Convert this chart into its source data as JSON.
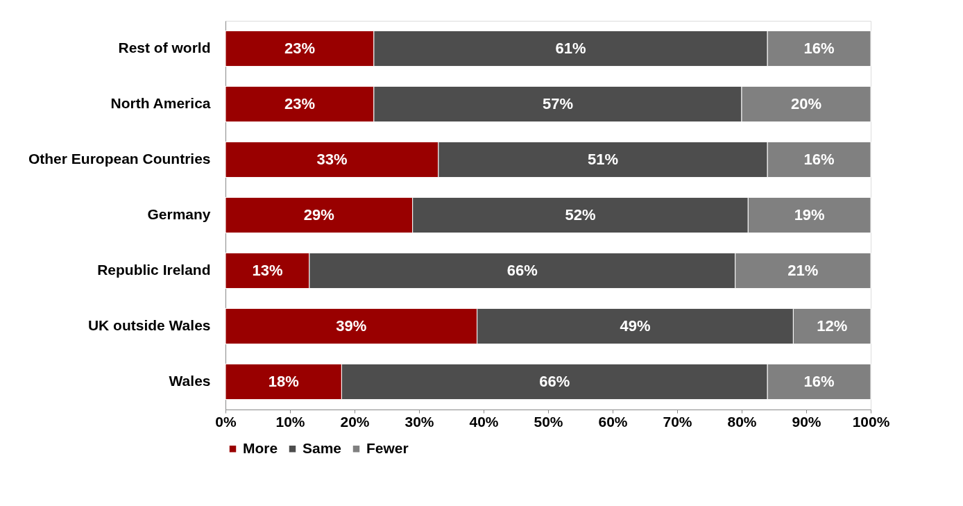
{
  "chart_data": {
    "type": "bar",
    "orientation": "horizontal",
    "stacked": true,
    "categories": [
      "Rest of world",
      "North America",
      "Other European Countries",
      "Germany",
      "Republic Ireland",
      "UK outside Wales",
      "Wales"
    ],
    "series": [
      {
        "name": "More",
        "color": "#990000",
        "values": [
          23,
          23,
          33,
          29,
          13,
          39,
          18
        ],
        "value_labels": [
          "23%",
          "23%",
          "33%",
          "29%",
          "13%",
          "39%",
          "18%"
        ]
      },
      {
        "name": "Same",
        "color": "#4d4d4d",
        "values": [
          61,
          57,
          51,
          52,
          66,
          49,
          66
        ],
        "value_labels": [
          "61%",
          "57%",
          "51%",
          "52%",
          "66%",
          "49%",
          "66%"
        ]
      },
      {
        "name": "Fewer",
        "color": "#808080",
        "values": [
          16,
          20,
          16,
          19,
          21,
          12,
          16
        ],
        "value_labels": [
          "16%",
          "20%",
          "16%",
          "19%",
          "21%",
          "12%",
          "16%"
        ]
      }
    ],
    "xlim": [
      0,
      100
    ],
    "xticks": [
      {
        "value": 0,
        "label": "0%"
      },
      {
        "value": 10,
        "label": "10%"
      },
      {
        "value": 20,
        "label": "20%"
      },
      {
        "value": 30,
        "label": "30%"
      },
      {
        "value": 40,
        "label": "40%"
      },
      {
        "value": 50,
        "label": "50%"
      },
      {
        "value": 60,
        "label": "60%"
      },
      {
        "value": 70,
        "label": "70%"
      },
      {
        "value": 80,
        "label": "80%"
      },
      {
        "value": 90,
        "label": "90%"
      },
      {
        "value": 100,
        "label": "100%"
      }
    ],
    "grid": false,
    "legend": "bottom"
  }
}
